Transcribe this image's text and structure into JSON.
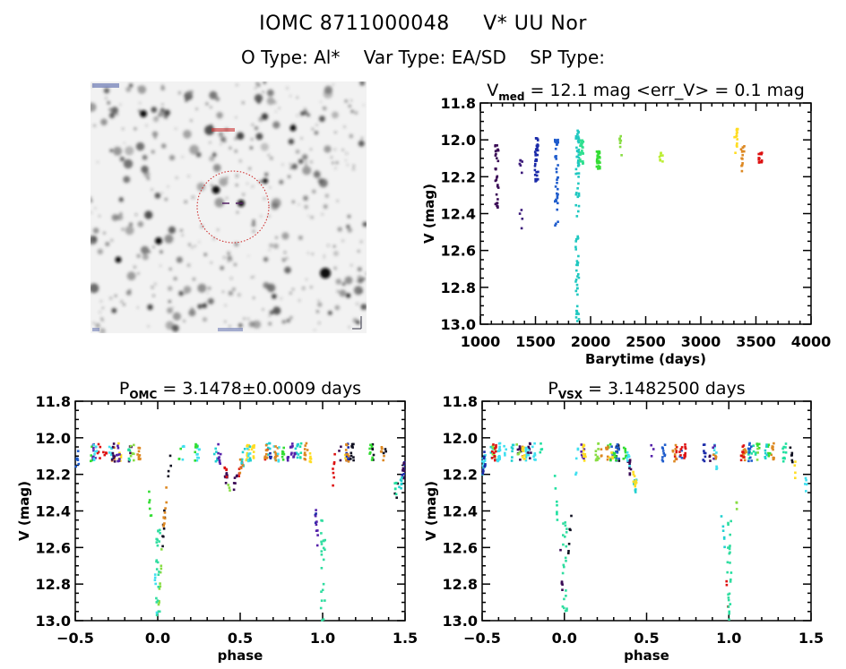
{
  "header": {
    "object_id": "IOMC 8711000048",
    "object_name": "V* UU Nor",
    "o_type": "O Type: Al*",
    "var_type": "Var Type: EA/SD",
    "sp_type": "SP Type:"
  },
  "sky_image": {
    "description": "Greyscale star field finding chart with red dashed circle around target",
    "circle_color": "#cc2222",
    "marker_color": "#552266"
  },
  "chart_data": [
    {
      "id": "light-curve",
      "type": "scatter",
      "title_main": "V",
      "title_sub": "med",
      "title_rest": " = 12.1 mag <err_V> = 0.1 mag",
      "xlabel": "Barytime (days)",
      "ylabel": "V (mag)",
      "xlim": [
        1000,
        4000
      ],
      "ylim": [
        11.8,
        13.0
      ],
      "y_inverted": true,
      "xticks": [
        1000,
        1500,
        2000,
        2500,
        3000,
        3500,
        4000
      ],
      "xtick_labels": [
        "1000",
        "1500",
        "2000",
        "2500",
        "3000",
        "3500",
        "4000"
      ],
      "yticks": [
        11.8,
        12.0,
        12.2,
        12.4,
        12.6,
        12.8,
        13.0
      ],
      "ytick_labels": [
        "11.8",
        "12.0",
        "12.2",
        "12.4",
        "12.6",
        "12.8",
        "13.0"
      ],
      "grid": false,
      "series": [
        {
          "name": "season-1",
          "color": "#3a0a55",
          "x_center": 1150,
          "y_range": [
            12.03,
            12.37
          ],
          "count": 30
        },
        {
          "name": "season-2",
          "color": "#3b1a7a",
          "x_center": 1370,
          "y_range": [
            12.1,
            12.48
          ],
          "count": 10
        },
        {
          "name": "season-3",
          "color": "#1a2aa8",
          "x_center": 1510,
          "y_range": [
            11.99,
            12.24
          ],
          "count": 35
        },
        {
          "name": "season-4",
          "color": "#1f5ccc",
          "x_center": 1690,
          "y_range": [
            12.0,
            12.48
          ],
          "count": 40
        },
        {
          "name": "season-5",
          "color": "#20c8c0",
          "x_center": 1880,
          "y_range": [
            11.95,
            12.99
          ],
          "count": 80
        },
        {
          "name": "season-6",
          "color": "#30e090",
          "x_center": 1920,
          "y_range": [
            12.0,
            12.15
          ],
          "count": 30
        },
        {
          "name": "season-7",
          "color": "#33dd33",
          "x_center": 2070,
          "y_range": [
            12.06,
            12.16
          ],
          "count": 25
        },
        {
          "name": "season-8",
          "color": "#88dd44",
          "x_center": 2270,
          "y_range": [
            11.98,
            12.09
          ],
          "count": 8
        },
        {
          "name": "season-9",
          "color": "#bbee33",
          "x_center": 2640,
          "y_range": [
            12.04,
            12.13
          ],
          "count": 8
        },
        {
          "name": "season-10",
          "color": "#ffdd22",
          "x_center": 3320,
          "y_range": [
            11.94,
            12.08
          ],
          "count": 15
        },
        {
          "name": "season-11",
          "color": "#dd8822",
          "x_center": 3380,
          "y_range": [
            12.03,
            12.2
          ],
          "count": 14
        },
        {
          "name": "season-12",
          "color": "#dd1111",
          "x_center": 3540,
          "y_range": [
            12.07,
            12.13
          ],
          "count": 14
        }
      ]
    },
    {
      "id": "phase-omc",
      "type": "scatter",
      "title_main": "P",
      "title_sub": "OMC",
      "title_rest": " = 3.1478±0.0009 days",
      "period_days": 3.1478,
      "period_err": 0.0009,
      "xlabel": "phase",
      "ylabel": "V (mag)",
      "xlim": [
        -0.5,
        1.5
      ],
      "ylim": [
        11.8,
        13.0
      ],
      "y_inverted": true,
      "xticks": [
        -0.5,
        0.0,
        0.5,
        1.0,
        1.5
      ],
      "xtick_labels": [
        "−0.5",
        "0.0",
        "0.5",
        "1.0",
        "1.5"
      ],
      "yticks": [
        11.8,
        12.0,
        12.2,
        12.4,
        12.6,
        12.8,
        13.0
      ],
      "ytick_labels": [
        "11.8",
        "12.0",
        "12.2",
        "12.4",
        "12.6",
        "12.8",
        "13.0"
      ],
      "grid": false,
      "primary_eclipse": {
        "phase": 0.0,
        "min_mag": 13.0
      },
      "secondary_eclipse": {
        "phase": 0.45,
        "min_mag": 12.3
      },
      "out_of_eclipse_mag": 12.08
    },
    {
      "id": "phase-vsx",
      "type": "scatter",
      "title_main": "P",
      "title_sub": "VSX",
      "title_rest": " = 3.1482500 days",
      "period_days": 3.14825,
      "xlabel": "phase",
      "ylabel": "V (mag)",
      "xlim": [
        -0.5,
        1.5
      ],
      "ylim": [
        11.8,
        13.0
      ],
      "y_inverted": true,
      "xticks": [
        -0.5,
        0.0,
        0.5,
        1.0,
        1.5
      ],
      "xtick_labels": [
        "−0.5",
        "0.0",
        "0.5",
        "1.0",
        "1.5"
      ],
      "yticks": [
        11.8,
        12.0,
        12.2,
        12.4,
        12.6,
        12.8,
        13.0
      ],
      "ytick_labels": [
        "11.8",
        "12.0",
        "12.2",
        "12.4",
        "12.6",
        "12.8",
        "13.0"
      ],
      "grid": false,
      "primary_eclipse": {
        "phase": 0.0,
        "min_mag": 13.0
      },
      "secondary_eclipse": {
        "phase": 0.45,
        "min_mag": 12.3
      },
      "out_of_eclipse_mag": 12.08
    }
  ]
}
